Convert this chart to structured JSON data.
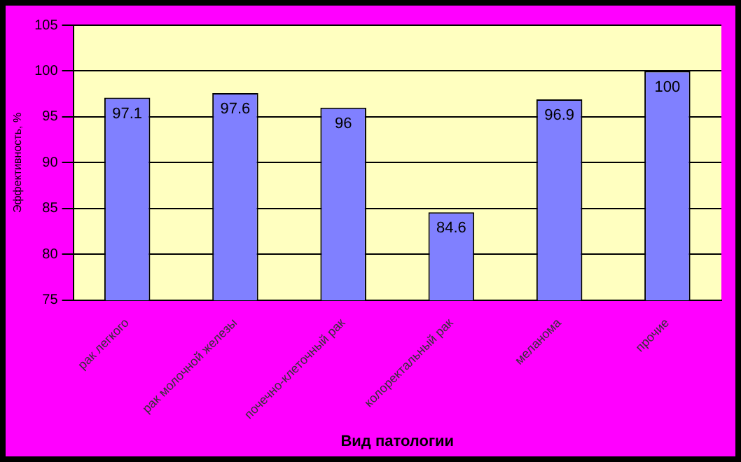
{
  "chart_data": {
    "type": "bar",
    "xlabel": "Вид патологии",
    "ylabel": "Эффективность, %",
    "categories": [
      "рак легкого",
      "рак молочной железы",
      "почечно-клеточный рак",
      "колоректальный рак",
      "меланома",
      "прочие"
    ],
    "values": [
      97.1,
      97.6,
      96,
      84.6,
      96.9,
      100
    ],
    "color": "#8080ff",
    "ylim": [
      75,
      105
    ],
    "yticks": [
      75,
      80,
      85,
      90,
      95,
      100,
      105
    ],
    "grid": "y",
    "data_labels": true
  }
}
